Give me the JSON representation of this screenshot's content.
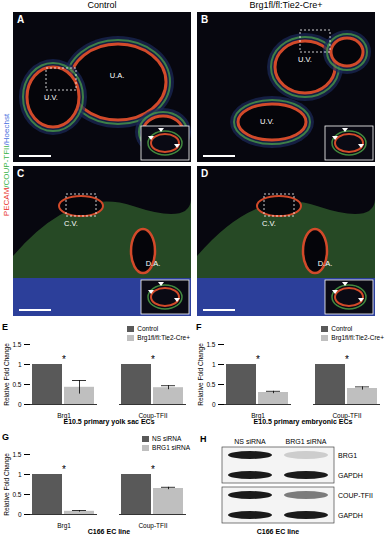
{
  "figure": {
    "column_headers": [
      "Control",
      "Brg1fl/fl:Tie2-Cre+"
    ],
    "stain_label": [
      {
        "text": "PECAM",
        "color": "#e8322b"
      },
      {
        "text": "/COUP-TFII",
        "color": "#38b44a"
      },
      {
        "text": "/Hoechst",
        "color": "#4a6fe0"
      }
    ],
    "images": [
      {
        "panel": "A",
        "labels": [
          "U.V.",
          "U.A."
        ]
      },
      {
        "panel": "B",
        "labels": [
          "U.V.",
          "U.V."
        ]
      },
      {
        "panel": "C",
        "labels": [
          "C.V.",
          "D.A."
        ]
      },
      {
        "panel": "D",
        "labels": [
          "C.V.",
          "D.A."
        ]
      }
    ],
    "blot": {
      "panel": "H",
      "lanes": [
        "NS siRNA",
        "BRG1 siRNA"
      ],
      "rows": [
        "BRG1",
        "GAPDH",
        "COUP-TFII",
        "GAPDH"
      ],
      "caption": "C166 EC line"
    }
  },
  "chart_data": [
    {
      "panel": "E",
      "type": "bar",
      "title": "E10.5 primary yolk sac ECs",
      "y_label": "Relative Fold Change",
      "categories": [
        "Brg1",
        "Coup-TFII"
      ],
      "series": [
        {
          "name": "Control",
          "color": "#595959",
          "values": [
            1,
            1
          ],
          "errors": [
            0,
            0
          ]
        },
        {
          "name": "Brg1fl/fl:Tie2-Cre+",
          "color": "#bfbfbf",
          "values": [
            0.43,
            0.42
          ],
          "errors": [
            0.17,
            0.05
          ]
        }
      ],
      "annotations": [
        "*",
        "*"
      ],
      "ylim": [
        0,
        1.5
      ],
      "yticks": [
        0,
        0.5,
        1,
        1.5
      ],
      "legend": "top-right"
    },
    {
      "panel": "F",
      "type": "bar",
      "title": "E10.5 primary embryonic ECs",
      "y_label": "Relative Fold Change",
      "categories": [
        "Brg1",
        "Coup-TFII"
      ],
      "series": [
        {
          "name": "Control",
          "color": "#595959",
          "values": [
            1,
            1
          ],
          "errors": [
            0,
            0
          ]
        },
        {
          "name": "Brg1fl/fl:Tie2-Cre+",
          "color": "#bfbfbf",
          "values": [
            0.3,
            0.4
          ],
          "errors": [
            0.03,
            0.04
          ]
        }
      ],
      "annotations": [
        "*",
        "*"
      ],
      "ylim": [
        0,
        1.5
      ],
      "yticks": [
        0,
        0.5,
        1,
        1.5
      ],
      "legend": "top-right"
    },
    {
      "panel": "G",
      "type": "bar",
      "title": "C166 EC line",
      "y_label": "Relative Fold Change",
      "categories": [
        "Brg1",
        "Coup-TFII"
      ],
      "series": [
        {
          "name": "NS siRNA",
          "color": "#595959",
          "values": [
            1,
            1
          ],
          "errors": [
            0,
            0
          ]
        },
        {
          "name": "BRG1 siRNA",
          "color": "#bfbfbf",
          "values": [
            0.08,
            0.65
          ],
          "errors": [
            0.02,
            0.03
          ]
        }
      ],
      "annotations": [
        "*",
        "*"
      ],
      "ylim": [
        0,
        1.5
      ],
      "yticks": [
        0,
        0.5,
        1,
        1.5
      ],
      "legend": "top-right"
    }
  ]
}
